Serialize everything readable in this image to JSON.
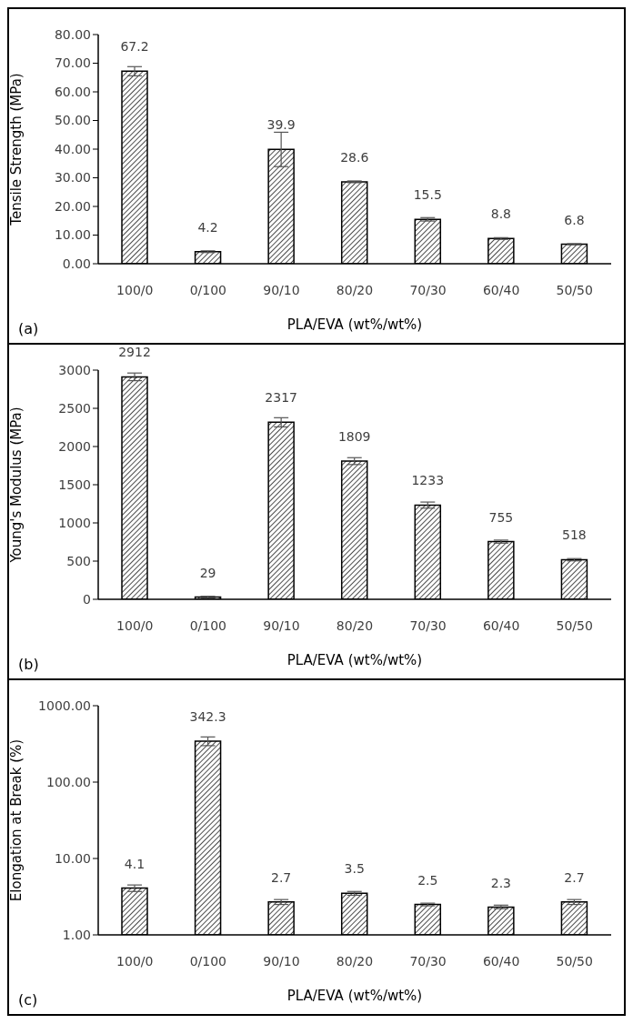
{
  "chart_data": [
    {
      "type": "bar",
      "categories": [
        "100/0",
        "0/100",
        "90/10",
        "80/20",
        "70/30",
        "60/40",
        "50/50"
      ],
      "values": [
        67.2,
        4.2,
        39.9,
        28.6,
        15.5,
        8.8,
        6.8
      ],
      "errors": [
        1.6,
        0.3,
        6,
        0.3,
        0.6,
        0.3,
        0.2
      ],
      "color": "#000000",
      "ylabel": "Tensile Strength (MPa)",
      "xlabel": "PLA/EVA (wt%/wt%)",
      "annotations": [
        "(a)"
      ],
      "data_labels": true,
      "ylim": [
        0,
        80
      ],
      "yticks": [
        {
          "value": 0,
          "label": "0.00"
        },
        {
          "value": 10,
          "label": "10.00"
        },
        {
          "value": 20,
          "label": "20.00"
        },
        {
          "value": 30,
          "label": "30.00"
        },
        {
          "value": 40,
          "label": "40.00"
        },
        {
          "value": 50,
          "label": "50.00"
        },
        {
          "value": 60,
          "label": "60.00"
        },
        {
          "value": 70,
          "label": "70.00"
        },
        {
          "value": 80,
          "label": "80.00"
        }
      ]
    },
    {
      "type": "bar",
      "categories": [
        "100/0",
        "0/100",
        "90/10",
        "80/20",
        "70/30",
        "60/40",
        "50/50"
      ],
      "values": [
        2912,
        29,
        2317,
        1809,
        1233,
        755,
        518
      ],
      "errors": [
        50,
        10,
        60,
        45,
        40,
        20,
        15
      ],
      "color": "#000000",
      "ylabel": "Young's Modulus (MPa)",
      "xlabel": "PLA/EVA (wt%/wt%)",
      "annotations": [
        "(b)"
      ],
      "data_labels": true,
      "ylim": [
        0,
        3000
      ],
      "yticks": [
        0,
        500,
        1000,
        1500,
        2000,
        2500,
        3000
      ]
    },
    {
      "type": "bar",
      "categories": [
        "100/0",
        "0/100",
        "90/10",
        "80/20",
        "70/30",
        "60/40",
        "50/50"
      ],
      "values": [
        4.1,
        342.3,
        2.7,
        3.5,
        2.5,
        2.3,
        2.7
      ],
      "errors": [
        [
          3.7,
          4.5
        ],
        [
          300,
          390
        ],
        [
          2.5,
          2.9
        ],
        [
          3.3,
          3.7
        ],
        [
          2.4,
          2.6
        ],
        [
          2.2,
          2.45
        ],
        [
          2.5,
          2.9
        ]
      ],
      "color": "#000000",
      "ylabel": "Elongation at Break (%)",
      "xlabel": "PLA/EVA (wt%/wt%)",
      "annotations": [
        "(c)"
      ],
      "data_labels": true,
      "log": true,
      "ylim": [
        1,
        1000
      ],
      "yticks": [
        {
          "value": 1,
          "label": "1.00"
        },
        {
          "value": 10,
          "label": "10.00"
        },
        {
          "value": 100,
          "label": "100.00"
        },
        {
          "value": 1000,
          "label": "1000.00"
        }
      ]
    }
  ]
}
